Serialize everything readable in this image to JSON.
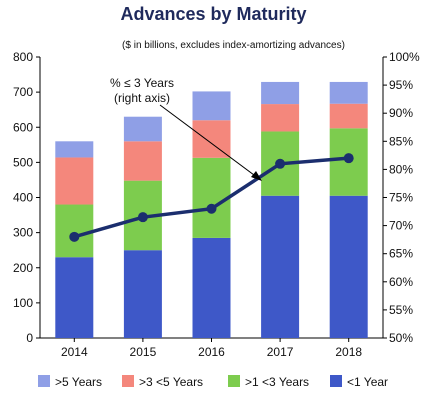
{
  "chart_data": {
    "type": "bar",
    "title": "Advances by Maturity",
    "subtitle": "($ in billions, excludes index-amortizing advances)",
    "categories": [
      "2014",
      "2015",
      "2016",
      "2017",
      "2018"
    ],
    "stacked": true,
    "ylim": [
      0,
      800
    ],
    "yticks": [
      "0",
      "100",
      "200",
      "300",
      "400",
      "500",
      "600",
      "700",
      "800"
    ],
    "y2lim": [
      50,
      100
    ],
    "y2ticks": [
      "50%",
      "55%",
      "60%",
      "65%",
      "70%",
      "75%",
      "80%",
      "85%",
      "90%",
      "95%",
      "100%"
    ],
    "series": [
      {
        "name": "<1 Year",
        "color": "#3e58c8",
        "values": [
          230,
          250,
          285,
          405,
          405
        ]
      },
      {
        "name": ">1 <3 Years",
        "color": "#7dcc4e",
        "values": [
          150,
          198,
          228,
          183,
          192
        ]
      },
      {
        "name": ">3 <5 Years",
        "color": "#f4877c",
        "values": [
          134,
          112,
          107,
          78,
          70
        ]
      },
      {
        "name": ">5 Years",
        "color": "#8f9fe6",
        "values": [
          46,
          70,
          82,
          63,
          62
        ]
      }
    ],
    "line": {
      "axis": "right",
      "color": "#1b2e6e",
      "values": [
        68,
        71.5,
        73,
        81,
        82
      ]
    },
    "annotation": [
      "% ≤ 3 Years",
      "(right axis)"
    ],
    "legend_position": "bottom",
    "grid": false
  }
}
